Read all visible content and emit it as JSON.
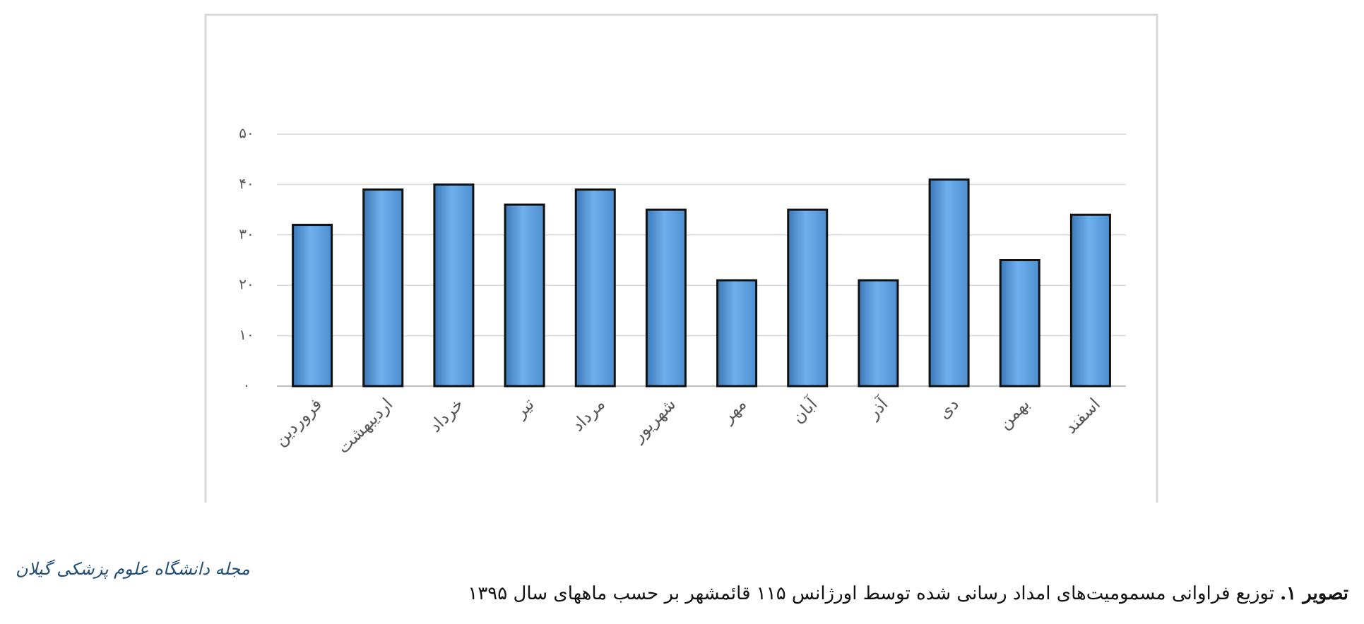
{
  "chart_data": {
    "type": "bar",
    "categories": [
      "فروردین",
      "اردیبهشت",
      "خرداد",
      "تیر",
      "مرداد",
      "شهریور",
      "مهر",
      "آبان",
      "آذر",
      "دی",
      "بهمن",
      "اسفند"
    ],
    "values": [
      32,
      39,
      40,
      36,
      39,
      35,
      21,
      35,
      21,
      41,
      25,
      34
    ],
    "color": "#5b9bd5",
    "ylim": [
      0,
      50
    ],
    "yticks": [
      {
        "value": 0,
        "label": "۰"
      },
      {
        "value": 10,
        "label": "۱۰"
      },
      {
        "value": 20,
        "label": "۲۰"
      },
      {
        "value": 30,
        "label": "۳۰"
      },
      {
        "value": 40,
        "label": "۴۰"
      },
      {
        "value": 50,
        "label": "۵۰"
      }
    ],
    "grid": true
  },
  "caption": {
    "label": "تصویر ۱.",
    "text": "توزیع فراوانی مسمومیت‌های امداد رسانی شده توسط اورژانس ۱۱۵ قائمشهر بر حسب ماههای سال ۱۳۹۵"
  },
  "journal": "مجله دانشگاه علوم پزشکی گیلان"
}
